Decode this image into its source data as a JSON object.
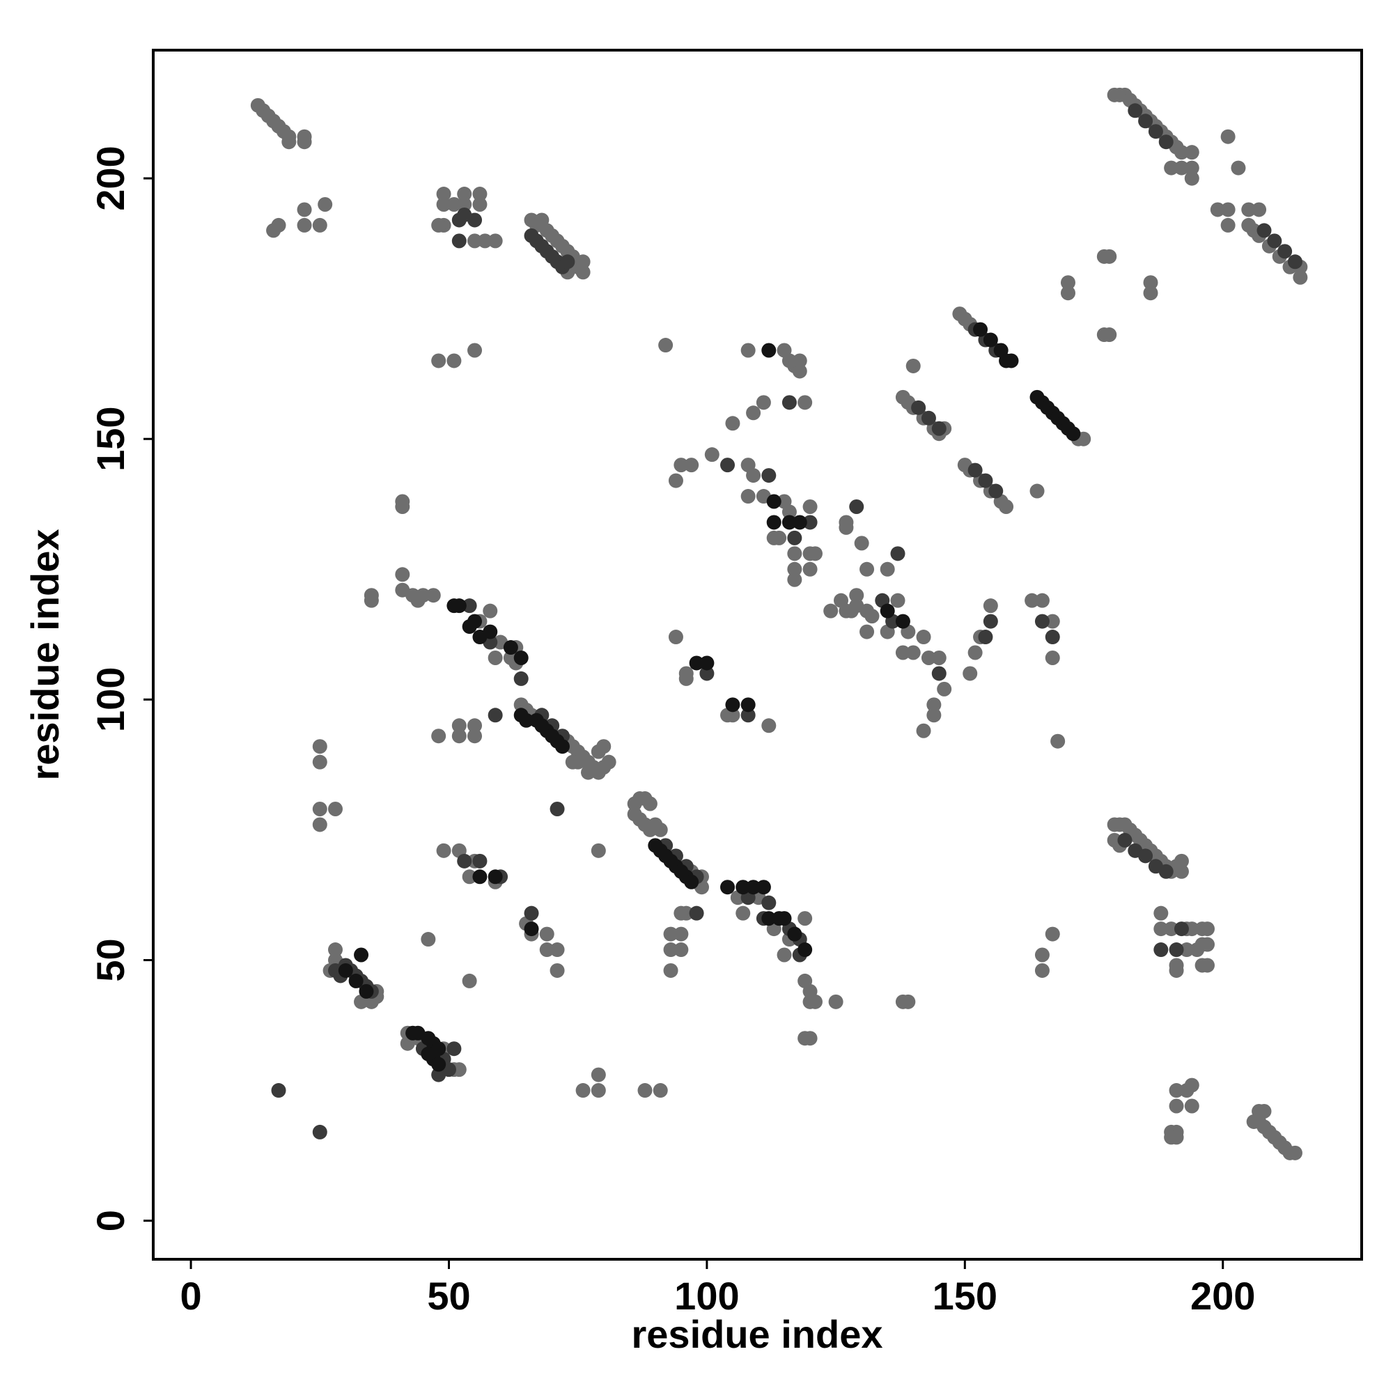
{
  "chart_data": {
    "type": "scatter",
    "xlabel": "residue index",
    "ylabel": "residue index",
    "xlim": [
      -7.3,
      226.9
    ],
    "ylim": [
      -7.4,
      224.6
    ],
    "xticks": [
      0,
      50,
      100,
      150,
      200
    ],
    "yticks": [
      0,
      50,
      100,
      150,
      200
    ],
    "series": [
      {
        "color": "#6e6e6e",
        "x": [
          13,
          14,
          15,
          16,
          17,
          18,
          19,
          19,
          22,
          22,
          16,
          17,
          22,
          22,
          25,
          26,
          49,
          49,
          49,
          51,
          53,
          53,
          56,
          56,
          48,
          55,
          57,
          59,
          66,
          67,
          68,
          69,
          70,
          71,
          72,
          73,
          74,
          75,
          76,
          76,
          73,
          48,
          51,
          55,
          179,
          180,
          181,
          182,
          183,
          184,
          185,
          186,
          187,
          188,
          189,
          190,
          191,
          192,
          190,
          192,
          194,
          194,
          194,
          201,
          203,
          199,
          201,
          201,
          205,
          205,
          207,
          206,
          207,
          209,
          211,
          213,
          215,
          215,
          177,
          178,
          177,
          178,
          170,
          170,
          186,
          186,
          149,
          150,
          151,
          138,
          139,
          140,
          142,
          144,
          145,
          146,
          140,
          172,
          173,
          164,
          150,
          151,
          153,
          155,
          157,
          158,
          92,
          108,
          115,
          116,
          117,
          118,
          118,
          111,
          119,
          109,
          105,
          101,
          97,
          95,
          94,
          108,
          109,
          108,
          111,
          115,
          116,
          120,
          113,
          114,
          117,
          117,
          117,
          120,
          121,
          120,
          127,
          127,
          130,
          131,
          135,
          124,
          126,
          127,
          128,
          129,
          129,
          131,
          131,
          132,
          135,
          137,
          139,
          138,
          140,
          142,
          143,
          145,
          146,
          144,
          144,
          142,
          155,
          153,
          152,
          151,
          163,
          165,
          167,
          167,
          168,
          165,
          165,
          167,
          56,
          58,
          59,
          60,
          63,
          62,
          63,
          41,
          41,
          41,
          41,
          43,
          45,
          47,
          35,
          35,
          44,
          64,
          65,
          66,
          73,
          74,
          75,
          75,
          76,
          77,
          78,
          79,
          80,
          81,
          79,
          80,
          77,
          74,
          48,
          52,
          55,
          52,
          55,
          79,
          86,
          87,
          88,
          89,
          86,
          87,
          88,
          89,
          90,
          91,
          98,
          99,
          99,
          97,
          106,
          110,
          107,
          113,
          116,
          119,
          115,
          119,
          120,
          120,
          121,
          125,
          119,
          120,
          138,
          139,
          95,
          96,
          93,
          95,
          93,
          95,
          93,
          65,
          66,
          69,
          69,
          71,
          71,
          49,
          52,
          55,
          54,
          59,
          46,
          54,
          28,
          28,
          27,
          29,
          33,
          35,
          36,
          36,
          42,
          42,
          44,
          51,
          52,
          49,
          25,
          25,
          25,
          25,
          28,
          76,
          79,
          79,
          88,
          91,
          179,
          180,
          181,
          182,
          183,
          184,
          185,
          186,
          187,
          188,
          189,
          190,
          191,
          192,
          192,
          179,
          180,
          188,
          188,
          190,
          193,
          193,
          191,
          191,
          196,
          197,
          196,
          197,
          196,
          197,
          194,
          195,
          191,
          193,
          191,
          194,
          194,
          190,
          191,
          190,
          191,
          207,
          208,
          206,
          207,
          208,
          209,
          210,
          211,
          212,
          213,
          214,
          94,
          96,
          96,
          104,
          105,
          112
        ],
        "y": [
          214,
          213,
          212,
          211,
          210,
          209,
          208,
          207,
          208,
          207,
          190,
          191,
          194,
          191,
          191,
          195,
          197,
          195,
          191,
          195,
          197,
          195,
          197,
          195,
          191,
          188,
          188,
          188,
          192,
          191,
          192,
          190,
          189,
          188,
          187,
          186,
          185,
          183,
          184,
          182,
          182,
          165,
          165,
          167,
          216,
          216,
          216,
          215,
          214,
          213,
          212,
          211,
          210,
          209,
          208,
          207,
          206,
          205,
          202,
          202,
          205,
          202,
          200,
          208,
          202,
          194,
          194,
          191,
          194,
          191,
          194,
          190,
          189,
          187,
          185,
          183,
          181,
          183,
          185,
          185,
          170,
          170,
          180,
          178,
          180,
          178,
          174,
          173,
          172,
          158,
          157,
          156,
          154,
          152,
          151,
          152,
          164,
          150,
          150,
          140,
          145,
          144,
          142,
          140,
          138,
          137,
          168,
          167,
          167,
          165,
          164,
          163,
          165,
          157,
          157,
          155,
          153,
          147,
          145,
          145,
          142,
          145,
          143,
          139,
          139,
          138,
          136,
          137,
          131,
          131,
          128,
          125,
          123,
          128,
          128,
          125,
          134,
          133,
          130,
          125,
          125,
          117,
          119,
          117,
          117,
          120,
          118,
          117,
          113,
          116,
          113,
          119,
          113,
          109,
          109,
          112,
          108,
          108,
          102,
          99,
          97,
          94,
          118,
          112,
          109,
          105,
          119,
          119,
          115,
          108,
          92,
          51,
          48,
          55,
          115,
          117,
          108,
          111,
          110,
          108,
          107,
          138,
          137,
          124,
          121,
          120,
          120,
          120,
          120,
          119,
          119,
          99,
          98,
          97,
          92,
          91,
          90,
          88,
          89,
          88,
          87,
          86,
          87,
          88,
          90,
          91,
          86,
          88,
          93,
          95,
          95,
          93,
          93,
          71,
          80,
          81,
          81,
          80,
          78,
          77,
          76,
          75,
          76,
          75,
          65,
          66,
          64,
          67,
          62,
          62,
          59,
          56,
          54,
          58,
          51,
          46,
          44,
          42,
          42,
          42,
          35,
          35,
          42,
          42,
          59,
          59,
          55,
          55,
          52,
          52,
          48,
          57,
          55,
          55,
          52,
          52,
          48,
          71,
          71,
          69,
          66,
          65,
          54,
          46,
          52,
          50,
          48,
          49,
          42,
          42,
          43,
          44,
          36,
          34,
          35,
          29,
          29,
          33,
          91,
          88,
          79,
          76,
          79,
          25,
          25,
          28,
          25,
          25,
          76,
          76,
          76,
          75,
          74,
          73,
          72,
          71,
          70,
          69,
          68,
          67,
          68,
          69,
          67,
          73,
          72,
          59,
          56,
          56,
          56,
          52,
          48,
          49,
          56,
          56,
          53,
          53,
          49,
          49,
          56,
          52,
          25,
          25,
          22,
          22,
          26,
          17,
          17,
          16,
          16,
          21,
          21,
          19,
          19,
          18,
          17,
          16,
          15,
          14,
          13,
          13,
          112,
          104,
          105,
          97,
          97,
          95
        ]
      },
      {
        "color": "#3a3a3a",
        "x": [
          52,
          53,
          55,
          52,
          66,
          67,
          68,
          69,
          70,
          71,
          72,
          73,
          183,
          185,
          187,
          189,
          208,
          210,
          212,
          214,
          152,
          154,
          156,
          141,
          143,
          145,
          152,
          154,
          156,
          116,
          104,
          112,
          117,
          120,
          129,
          137,
          134,
          136,
          145,
          155,
          154,
          165,
          167,
          54,
          58,
          64,
          68,
          70,
          72,
          59,
          71,
          92,
          94,
          96,
          98,
          108,
          112,
          111,
          116,
          118,
          118,
          98,
          66,
          53,
          56,
          60,
          28,
          29,
          30,
          31,
          32,
          33,
          34,
          35,
          48,
          45,
          49,
          50,
          51,
          17,
          25,
          181,
          183,
          185,
          187,
          189,
          188,
          191,
          192,
          100,
          108
        ],
        "y": [
          192,
          193,
          192,
          188,
          189,
          188,
          187,
          186,
          185,
          184,
          183,
          184,
          213,
          211,
          209,
          207,
          190,
          188,
          186,
          184,
          171,
          169,
          167,
          156,
          154,
          152,
          144,
          142,
          140,
          157,
          145,
          143,
          131,
          134,
          137,
          128,
          119,
          115,
          105,
          115,
          112,
          115,
          112,
          118,
          111,
          104,
          97,
          95,
          93,
          97,
          79,
          72,
          70,
          68,
          66,
          62,
          61,
          58,
          56,
          54,
          51,
          59,
          59,
          69,
          69,
          66,
          48,
          47,
          49,
          48,
          47,
          46,
          45,
          44,
          28,
          33,
          31,
          29,
          33,
          25,
          17,
          73,
          71,
          70,
          68,
          67,
          52,
          52,
          56,
          105,
          97
        ]
      },
      {
        "color": "#141414",
        "x": [
          153,
          155,
          157,
          158,
          159,
          164,
          165,
          166,
          167,
          168,
          169,
          170,
          171,
          112,
          113,
          113,
          116,
          118,
          135,
          138,
          51,
          52,
          54,
          55,
          56,
          58,
          62,
          64,
          64,
          65,
          67,
          68,
          69,
          70,
          71,
          72,
          90,
          91,
          92,
          93,
          94,
          95,
          96,
          97,
          104,
          107,
          109,
          111,
          112,
          114,
          115,
          117,
          119,
          66,
          56,
          59,
          30,
          32,
          33,
          34,
          43,
          44,
          46,
          47,
          48,
          46,
          47,
          48,
          98,
          100,
          105,
          108
        ],
        "y": [
          171,
          169,
          167,
          165,
          165,
          158,
          157,
          156,
          155,
          154,
          153,
          152,
          151,
          167,
          138,
          134,
          134,
          134,
          117,
          115,
          118,
          118,
          114,
          115,
          112,
          113,
          110,
          108,
          97,
          96,
          96,
          95,
          94,
          93,
          92,
          91,
          72,
          71,
          70,
          69,
          68,
          67,
          66,
          65,
          64,
          64,
          64,
          64,
          58,
          58,
          58,
          55,
          52,
          56,
          66,
          66,
          48,
          46,
          51,
          44,
          36,
          36,
          35,
          34,
          33,
          32,
          31,
          30,
          107,
          107,
          99,
          99
        ]
      }
    ]
  }
}
